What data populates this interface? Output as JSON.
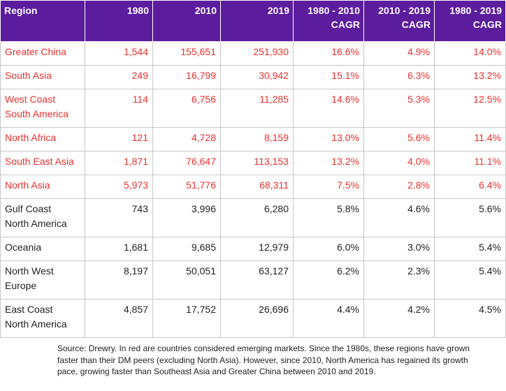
{
  "table": {
    "headers": {
      "region": "Region",
      "y1980": "1980",
      "y2010": "2010",
      "y2019": "2019",
      "cagr_1980_2010": [
        "1980 - 2010",
        "CAGR"
      ],
      "cagr_2010_2019": [
        "2010 - 2019",
        "CAGR"
      ],
      "cagr_1980_2019": [
        "1980 - 2019",
        "CAGR"
      ]
    },
    "rows": [
      {
        "region": [
          "Greater China"
        ],
        "y1980": "1,544",
        "y2010": "155,651",
        "y2019": "251,930",
        "c1": "16.6%",
        "c2": "4.9%",
        "c3": "14.0%",
        "emerging": true
      },
      {
        "region": [
          "South Asia"
        ],
        "y1980": "249",
        "y2010": "16,799",
        "y2019": "30,942",
        "c1": "15.1%",
        "c2": "6.3%",
        "c3": "13.2%",
        "emerging": true
      },
      {
        "region": [
          "West Coast",
          "South America"
        ],
        "y1980": "114",
        "y2010": "6,756",
        "y2019": "11,285",
        "c1": "14.6%",
        "c2": "5.3%",
        "c3": "12.5%",
        "emerging": true
      },
      {
        "region": [
          "North Africa"
        ],
        "y1980": "121",
        "y2010": "4,728",
        "y2019": "8,159",
        "c1": "13.0%",
        "c2": "5.6%",
        "c3": "11.4%",
        "emerging": true
      },
      {
        "region": [
          "South East Asia"
        ],
        "y1980": "1,871",
        "y2010": "76,647",
        "y2019": "113,153",
        "c1": "13.2%",
        "c2": "4.0%",
        "c3": "11.1%",
        "emerging": true
      },
      {
        "region": [
          "North Asia"
        ],
        "y1980": "5,973",
        "y2010": "51,776",
        "y2019": "68,311",
        "c1": "7.5%",
        "c2": "2.8%",
        "c3": "6.4%",
        "emerging": true
      },
      {
        "region": [
          "Gulf Coast",
          "North America"
        ],
        "y1980": "743",
        "y2010": "3,996",
        "y2019": "6,280",
        "c1": "5.8%",
        "c2": "4.6%",
        "c3": "5.6%",
        "emerging": false
      },
      {
        "region": [
          "Oceania"
        ],
        "y1980": "1,681",
        "y2010": "9,685",
        "y2019": "12,979",
        "c1": "6.0%",
        "c2": "3.0%",
        "c3": "5.4%",
        "emerging": false
      },
      {
        "region": [
          "North West",
          "Europe"
        ],
        "y1980": "8,197",
        "y2010": "50,051",
        "y2019": "63,127",
        "c1": "6.2%",
        "c2": "2.3%",
        "c3": "5.4%",
        "emerging": false
      },
      {
        "region": [
          "East Coast",
          "North America"
        ],
        "y1980": "4,857",
        "y2010": "17,752",
        "y2019": "26,696",
        "c1": "4.4%",
        "c2": "4.2%",
        "c3": "4.5%",
        "emerging": false
      }
    ]
  },
  "colors": {
    "header_bg": "#5b1c9e",
    "emerging_text": "#e8322e",
    "developed_text": "#222222"
  },
  "source_note": "Source: Drewry. In red are countries considered emerging markets. Since the 1980s, these regions have grown faster than their DM peers (excluding North Asia). However, since 2010, North America has regained its growth pace, growing faster than Southeast Asia and Greater China between 2010 and 2019."
}
